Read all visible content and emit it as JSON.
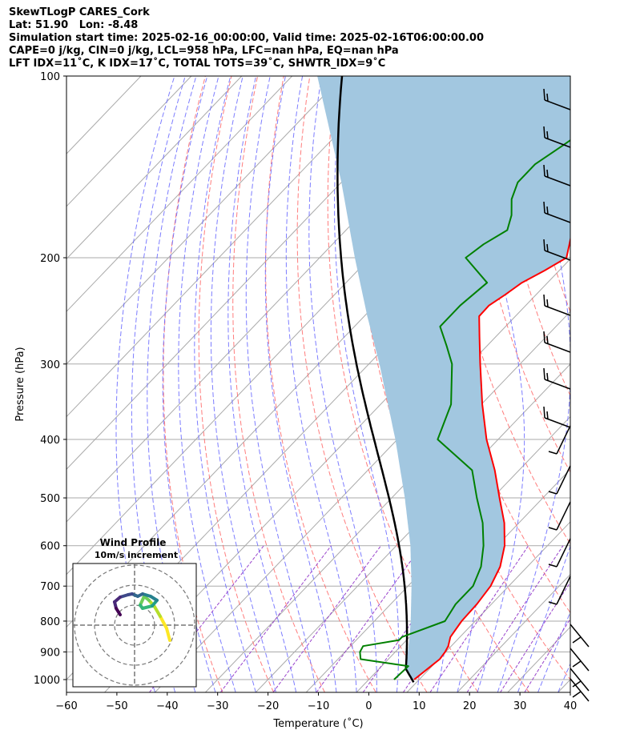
{
  "header": {
    "line1": "SkewTLogP CARES_Cork",
    "line2": "Lat: 51.90   Lon: -8.48",
    "line3": "Simulation start time: 2025-02-16_00:00:00, Valid time: 2025-02-16T06:00:00.00",
    "line4": "CAPE=0 j/kg, CIN=0 j/kg, LCL=958 hPa, LFC=nan hPa, EQ=nan hPa",
    "line5": "LFT IDX=11˚C, K IDX=17˚C, TOTAL TOTS=39˚C, SHWTR_IDX=9˚C"
  },
  "chart_data": [
    {
      "type": "line",
      "subtype": "skew-t log-p",
      "xlabel": "Temperature (˚C)",
      "ylabel": "Pressure (hPa)",
      "xlim": [
        -60,
        40
      ],
      "ylim": [
        1050,
        100
      ],
      "y_scale": "log",
      "x_ticks": [
        "−60",
        "−50",
        "−40",
        "−30",
        "−20",
        "−10",
        "0",
        "10",
        "20",
        "30",
        "40"
      ],
      "y_ticks": [
        "100",
        "200",
        "300",
        "400",
        "500",
        "600",
        "700",
        "800",
        "900",
        "1000"
      ],
      "colors": {
        "temperature": "#ff0000",
        "dewpoint": "#008000",
        "parcel": "#000000",
        "fill": "#a2c7e0",
        "dry_adiabat": "#ff6666",
        "moist_adiabat": "#6666ff",
        "mixing_ratio": "#9944cc",
        "isotherm": "#aaaaaa",
        "isobar": "#aaaaaa"
      },
      "series": [
        {
          "role": "temperature",
          "pressure": [
            1000,
            950,
            925,
            900,
            880,
            850,
            800,
            750,
            700,
            650,
            600,
            550,
            500,
            450,
            400,
            350,
            300,
            270,
            250,
            240,
            230,
            220,
            210,
            200,
            185,
            170,
            155,
            140,
            125,
            112,
            100
          ],
          "values": [
            9,
            9.8,
            10.2,
            9.9,
            9.4,
            8.1,
            7.3,
            7.1,
            6.4,
            4.6,
            1.5,
            -2.9,
            -8.6,
            -14.8,
            -22.3,
            -29.8,
            -37.9,
            -43.3,
            -47.2,
            -47.3,
            -46.1,
            -45.1,
            -42.9,
            -41.0,
            -44.0,
            -42.5,
            -41.0,
            -39.0,
            -37.0,
            -36.0,
            -35.0
          ]
        },
        {
          "role": "dewpoint",
          "pressure": [
            1000,
            950,
            925,
            900,
            880,
            860,
            850,
            800,
            750,
            700,
            650,
            600,
            550,
            500,
            450,
            400,
            350,
            300,
            280,
            260,
            240,
            220,
            200,
            190,
            180,
            170,
            160,
            150,
            140,
            130,
            120,
            100
          ],
          "values": [
            5,
            5.3,
            -5.5,
            -7.0,
            -7.5,
            -1.5,
            -1.5,
            4.0,
            2.9,
            2.9,
            0.8,
            -2.7,
            -7.2,
            -13.1,
            -19.3,
            -32.0,
            -36.0,
            -43.5,
            -48.0,
            -53.0,
            -53.0,
            -52.0,
            -61.0,
            -60.0,
            -58.0,
            -60.0,
            -63.0,
            -65.0,
            -65.0,
            -63.0,
            -61.0,
            -55.0
          ]
        },
        {
          "role": "parcel",
          "pressure": [
            1010,
            1000,
            958,
            900,
            850,
            800,
            700,
            600,
            500,
            400,
            300,
            250,
            200,
            150,
            100
          ],
          "values": [
            9.4,
            8.5,
            5.2,
            2.5,
            0.0,
            -2.8,
            -9.3,
            -17.2,
            -27.4,
            -40.4,
            -57.9,
            -69.4,
            -83.0,
            -100.0,
            -125.0
          ]
        }
      ],
      "annotations": [
        "Wind barbs along right edge"
      ]
    },
    {
      "type": "line",
      "subtype": "hodograph",
      "title": "Wind Profile",
      "subtitle": "10m/s increment",
      "rings": [
        10,
        20,
        30
      ],
      "colormap": "viridis"
    }
  ]
}
